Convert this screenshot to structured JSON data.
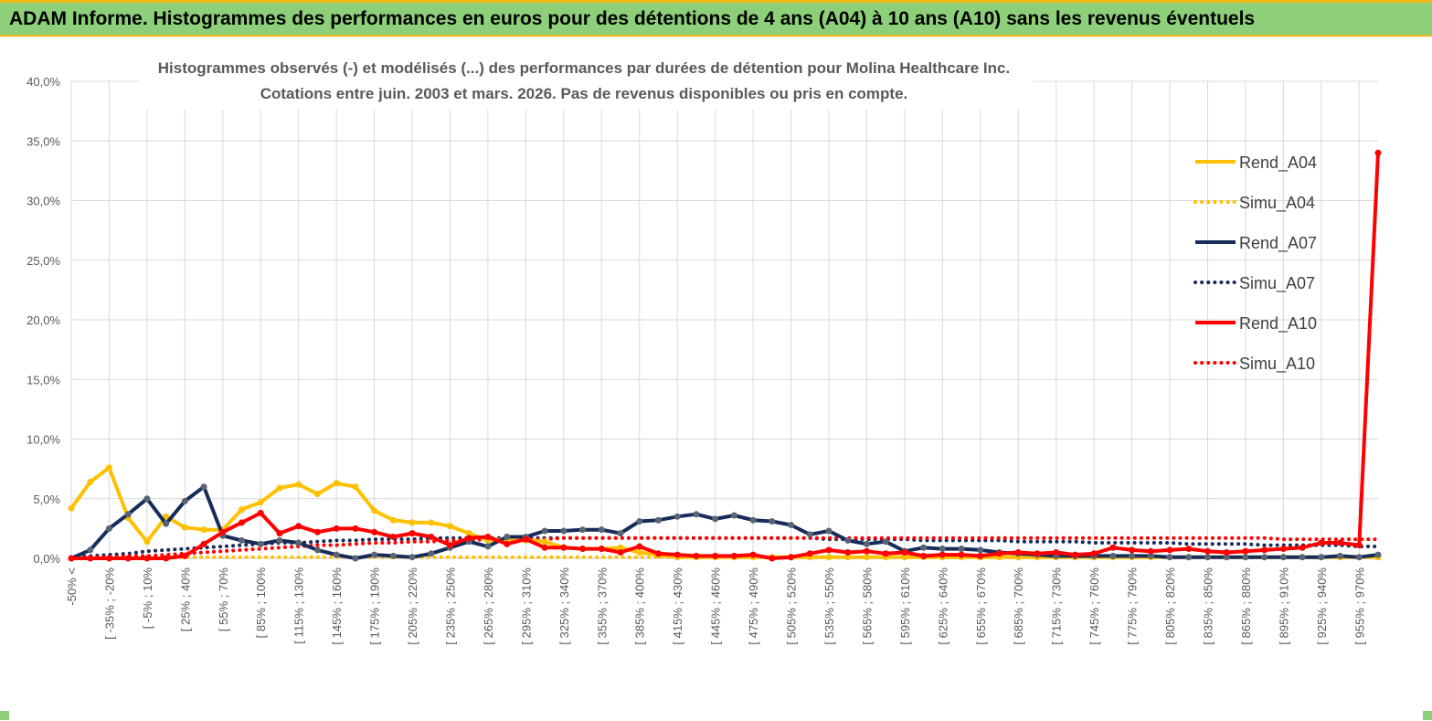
{
  "banner": {
    "title": "ADAM Informe. Histogrammes des performances en euros pour des détentions de 4 ans (A04) à 10 ans (A10) sans les revenus éventuels",
    "background": "#8ecf7a",
    "border": "#f2b818"
  },
  "chart_data": {
    "type": "line",
    "title_line1": "Histogrammes observés (-) et modélisés (...) des performances par durées de détention pour Molina Healthcare Inc.",
    "title_line2": "Cotations entre juin. 2003 et mars. 2026. Pas de revenus disponibles ou pris en compte.",
    "ylim": [
      0,
      40
    ],
    "y_ticks": [
      "0,0%",
      "5,0%",
      "10,0%",
      "15,0%",
      "20,0%",
      "25,0%",
      "30,0%",
      "35,0%",
      "40,0%"
    ],
    "x_labels": [
      "-50% <",
      "[ -35% ; -20%",
      "[ -5% ; 10%",
      "[ 25% ; 40%",
      "[ 55% ; 70%",
      "[ 85% ; 100%",
      "[ 115% ; 130%",
      "[ 145% ; 160%",
      "[ 175% ; 190%",
      "[ 205% ; 220%",
      "[ 235% ; 250%",
      "[ 265% ; 280%",
      "[ 295% ; 310%",
      "[ 325% ; 340%",
      "[ 355% ; 370%",
      "[ 385% ; 400%",
      "[ 415% ; 430%",
      "[ 445% ; 460%",
      "[ 475% ; 490%",
      "[ 505% ; 520%",
      "[ 535% ; 550%",
      "[ 565% ; 580%",
      "[ 595% ; 610%",
      "[ 625% ; 640%",
      "[ 655% ; 670%",
      "[ 685% ; 700%",
      "[ 715% ; 730%",
      "[ 745% ; 760%",
      "[ 775% ; 790%",
      "[ 805% ; 820%",
      "[ 835% ; 850%",
      "[ 865% ; 880%",
      "[ 895% ; 910%",
      "[ 925% ; 940%",
      "[ 955% ; 970%"
    ],
    "series": [
      {
        "name": "Rend_A04",
        "color": "#ffc000",
        "style": "solid",
        "markers": true,
        "values": [
          4.2,
          6.4,
          7.6,
          3.4,
          1.4,
          3.5,
          2.6,
          2.4,
          2.4,
          4.1,
          4.7,
          5.9,
          6.2,
          5.4,
          6.3,
          6.0,
          4.0,
          3.2,
          3.0,
          3.0,
          2.7,
          2.1,
          1.5,
          1.6,
          1.5,
          1.4,
          0.9,
          0.8,
          0.8,
          0.9,
          0.5,
          0.3,
          0.1,
          0.1,
          0.1,
          0.1,
          0.1,
          0.1,
          0.1,
          0.1,
          0.1,
          0.1,
          0.1,
          0.1,
          0.1,
          0.1,
          0.1,
          0.1,
          0.1,
          0.1,
          0.1,
          0.1,
          0.1,
          0.1,
          0.1,
          0.1,
          0.1,
          0.1,
          0.1,
          0.1,
          0.1,
          0.1,
          0.1,
          0.1,
          0.1,
          0.1,
          0.1,
          0.1,
          0.1,
          0.1
        ]
      },
      {
        "name": "Simu_A04",
        "color": "#ffc000",
        "style": "dotted",
        "markers": false,
        "values": [
          0.1,
          0.1,
          0.1,
          0.1,
          0.1,
          0.1,
          0.1,
          0.1,
          0.1,
          0.1,
          0.1,
          0.1,
          0.1,
          0.1,
          0.1,
          0.1,
          0.1,
          0.1,
          0.1,
          0.1,
          0.1,
          0.1,
          0.1,
          0.1,
          0.1,
          0.1,
          0.1,
          0.1,
          0.1,
          0.1,
          0.1,
          0.1,
          0.1,
          0.1,
          0.1,
          0.1,
          0.1,
          0.1,
          0.1,
          0.1,
          0.1,
          0.1,
          0.1,
          0.1,
          0.1,
          0.1,
          0.1,
          0.1,
          0.1,
          0.1,
          0.1,
          0.1,
          0.1,
          0.1,
          0.1,
          0.1,
          0.1,
          0.1,
          0.1,
          0.1,
          0.1,
          0.1,
          0.1,
          0.1,
          0.1,
          0.1,
          0.1,
          0.1,
          0.1,
          0.1
        ]
      },
      {
        "name": "Rend_A07",
        "color": "#172c5b",
        "style": "solid",
        "markers": true,
        "values": [
          0.0,
          0.7,
          2.5,
          3.7,
          5.0,
          2.9,
          4.8,
          6.0,
          1.9,
          1.5,
          1.2,
          1.5,
          1.3,
          0.7,
          0.3,
          0.0,
          0.3,
          0.2,
          0.1,
          0.4,
          0.9,
          1.4,
          1.0,
          1.8,
          1.8,
          2.3,
          2.3,
          2.4,
          2.4,
          2.1,
          3.1,
          3.2,
          3.5,
          3.7,
          3.3,
          3.6,
          3.2,
          3.1,
          2.8,
          2.0,
          2.3,
          1.5,
          1.2,
          1.4,
          0.6,
          0.9,
          0.8,
          0.8,
          0.7,
          0.5,
          0.4,
          0.3,
          0.2,
          0.2,
          0.2,
          0.2,
          0.2,
          0.2,
          0.1,
          0.1,
          0.1,
          0.1,
          0.1,
          0.1,
          0.1,
          0.1,
          0.1,
          0.2,
          0.1,
          0.3
        ]
      },
      {
        "name": "Simu_A07",
        "color": "#172c5b",
        "style": "dotted",
        "markers": false,
        "values": [
          0.1,
          0.2,
          0.3,
          0.4,
          0.6,
          0.7,
          0.8,
          0.9,
          1.0,
          1.1,
          1.2,
          1.3,
          1.3,
          1.4,
          1.5,
          1.5,
          1.6,
          1.6,
          1.6,
          1.7,
          1.7,
          1.7,
          1.7,
          1.7,
          1.7,
          1.7,
          1.7,
          1.7,
          1.7,
          1.7,
          1.7,
          1.7,
          1.7,
          1.7,
          1.7,
          1.7,
          1.7,
          1.7,
          1.7,
          1.7,
          1.6,
          1.6,
          1.6,
          1.6,
          1.6,
          1.5,
          1.5,
          1.5,
          1.5,
          1.5,
          1.4,
          1.4,
          1.4,
          1.4,
          1.3,
          1.3,
          1.3,
          1.3,
          1.3,
          1.2,
          1.2,
          1.2,
          1.2,
          1.1,
          1.1,
          1.1,
          1.1,
          1.1,
          1.0,
          1.0
        ]
      },
      {
        "name": "Rend_A10",
        "color": "#ff0000",
        "style": "solid",
        "markers": true,
        "values": [
          0.0,
          0.0,
          0.0,
          0.0,
          0.0,
          0.0,
          0.2,
          1.2,
          2.2,
          3.0,
          3.8,
          2.1,
          2.7,
          2.2,
          2.5,
          2.5,
          2.2,
          1.8,
          2.1,
          1.8,
          1.1,
          1.7,
          1.8,
          1.2,
          1.6,
          0.9,
          0.9,
          0.8,
          0.8,
          0.5,
          1.0,
          0.4,
          0.3,
          0.2,
          0.2,
          0.2,
          0.3,
          0.0,
          0.1,
          0.4,
          0.7,
          0.5,
          0.6,
          0.4,
          0.5,
          0.2,
          0.3,
          0.3,
          0.2,
          0.4,
          0.5,
          0.4,
          0.5,
          0.3,
          0.4,
          0.9,
          0.7,
          0.6,
          0.7,
          0.8,
          0.6,
          0.5,
          0.6,
          0.7,
          0.8,
          0.9,
          1.3,
          1.3,
          1.1,
          34.0
        ]
      },
      {
        "name": "Simu_A10",
        "color": "#ff0000",
        "style": "dotted",
        "markers": false,
        "values": [
          0.0,
          0.1,
          0.1,
          0.2,
          0.2,
          0.3,
          0.4,
          0.5,
          0.6,
          0.7,
          0.8,
          0.9,
          1.0,
          1.1,
          1.1,
          1.2,
          1.3,
          1.3,
          1.4,
          1.4,
          1.5,
          1.5,
          1.6,
          1.6,
          1.6,
          1.6,
          1.7,
          1.7,
          1.7,
          1.7,
          1.7,
          1.7,
          1.7,
          1.7,
          1.7,
          1.7,
          1.7,
          1.7,
          1.7,
          1.7,
          1.7,
          1.7,
          1.7,
          1.7,
          1.7,
          1.7,
          1.7,
          1.7,
          1.7,
          1.7,
          1.7,
          1.7,
          1.7,
          1.7,
          1.7,
          1.7,
          1.7,
          1.7,
          1.7,
          1.7,
          1.7,
          1.7,
          1.7,
          1.7,
          1.6,
          1.6,
          1.6,
          1.6,
          1.6,
          1.6
        ]
      }
    ],
    "legend_position": "right"
  }
}
